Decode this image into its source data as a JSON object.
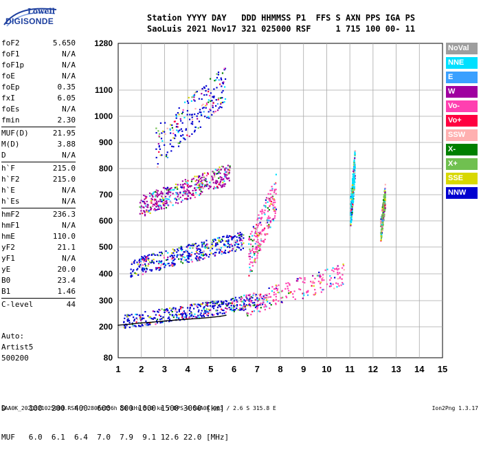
{
  "logo": {
    "line1": "Lowell",
    "line2": "DIGISONDE"
  },
  "header": {
    "line1": "Station YYYY DAY   DDD HHMMSS P1  FFS S AXN PPS IGA PS",
    "line2": "SaoLuis 2021 Nov17 321 025000 RSF     1 715 100 00- 11"
  },
  "params": [
    {
      "name": "foF2",
      "value": "5.650"
    },
    {
      "name": "foF1",
      "value": "N/A"
    },
    {
      "name": "foF1p",
      "value": "N/A"
    },
    {
      "name": "foE",
      "value": "N/A"
    },
    {
      "name": "foEp",
      "value": "0.35"
    },
    {
      "name": "fxI",
      "value": "6.05"
    },
    {
      "name": "foEs",
      "value": "N/A"
    },
    {
      "name": "fmin",
      "value": "2.30"
    },
    {
      "name": "MUF(D)",
      "value": "21.95",
      "sep": true
    },
    {
      "name": "M(D)",
      "value": "3.88"
    },
    {
      "name": "D",
      "value": "N/A"
    },
    {
      "name": "h`F",
      "value": "215.0",
      "sep": true
    },
    {
      "name": "h`F2",
      "value": "215.0"
    },
    {
      "name": "h`E",
      "value": "N/A"
    },
    {
      "name": "h`Es",
      "value": "N/A"
    },
    {
      "name": "hmF2",
      "value": "236.3",
      "sep": true
    },
    {
      "name": "hmF1",
      "value": "N/A"
    },
    {
      "name": "hmE",
      "value": "110.0"
    },
    {
      "name": "yF2",
      "value": "21.1"
    },
    {
      "name": "yF1",
      "value": "N/A"
    },
    {
      "name": "yE",
      "value": "20.0"
    },
    {
      "name": "B0",
      "value": "23.4"
    },
    {
      "name": "B1",
      "value": "1.46"
    },
    {
      "name": "C-level",
      "value": "44",
      "sep": true
    }
  ],
  "auto": {
    "line1": "Auto:",
    "line2": "Artist5",
    "line3": "500200"
  },
  "footer": {
    "d_line": "D     100  200  400  600  800 1000 1500 3000 [km]",
    "muf_line": "MUF   6.0  6.1  6.4  7.0  7.9  9.1 12.6 22.0 [MHz]"
  },
  "bottom_line": "SAA0K_2021321025000.RSF / 280fx256h 50 kHs 5.0 km / DPS-4 SAA0K 903 / 2.6 S 315.8 E",
  "version": "Ion2Png 1.3.17",
  "legend": [
    {
      "label": "NoVal",
      "color": "#9e9e9e"
    },
    {
      "label": "NNE",
      "color": "#00e0ff"
    },
    {
      "label": "E",
      "color": "#3aa0ff"
    },
    {
      "label": "W",
      "color": "#a000a0"
    },
    {
      "label": "Vo-",
      "color": "#ff40b0"
    },
    {
      "label": "Vo+",
      "color": "#ff0040"
    },
    {
      "label": "SSW",
      "color": "#ffb0b0"
    },
    {
      "label": "X-",
      "color": "#008000"
    },
    {
      "label": "X+",
      "color": "#70c050"
    },
    {
      "label": "SSE",
      "color": "#d8d800"
    },
    {
      "label": "NNW",
      "color": "#0000d0"
    }
  ],
  "chart_data": {
    "type": "scatter",
    "xlabel": "",
    "ylabel": "",
    "xlim": [
      1,
      15
    ],
    "ylim": [
      80,
      1280
    ],
    "x_ticks": [
      "1",
      "2",
      "3",
      "4",
      "5",
      "6",
      "7",
      "8",
      "9",
      "10",
      "11",
      "12",
      "13",
      "14",
      "15"
    ],
    "y_ticks": [
      "80",
      "200",
      "300",
      "400",
      "500",
      "600",
      "700",
      "800",
      "900",
      "1000",
      "1100",
      "1280"
    ],
    "grid": true,
    "trace": {
      "name": "F2 virtual height trace",
      "x": [
        1.0,
        1.5,
        2.0,
        2.5,
        3.0,
        3.5,
        4.0,
        4.5,
        5.0,
        5.4,
        5.65
      ],
      "y": [
        206,
        210,
        215,
        218,
        222,
        226,
        229,
        232,
        236,
        240,
        244
      ]
    },
    "echo_clusters": [
      {
        "label": "F2 O-mode 1st hop",
        "x": [
          1.2,
          7.3
        ],
        "y": [
          210,
          330
        ],
        "color": "#0000d0"
      },
      {
        "label": "F2 2nd hop",
        "x": [
          1.5,
          6.4
        ],
        "y": [
          410,
          560
        ],
        "color": "#0000d0"
      },
      {
        "label": "F2 3rd hop",
        "x": [
          1.9,
          5.8
        ],
        "y": [
          640,
          820
        ],
        "color": "#a000a0"
      },
      {
        "label": "upper multi-hop",
        "x": [
          2.6,
          5.6
        ],
        "y": [
          850,
          1200
        ],
        "color": "#0000d0"
      },
      {
        "label": "spread F",
        "x": [
          6.2,
          10.8
        ],
        "y": [
          260,
          440
        ],
        "color": "#ff40b0"
      },
      {
        "label": "spread F high",
        "x": [
          6.6,
          7.8
        ],
        "y": [
          430,
          780
        ],
        "color": "#ff40b0"
      },
      {
        "label": "interference 11.1 MHz",
        "x": [
          11.0,
          11.2
        ],
        "y": [
          600,
          880
        ],
        "color": "#00e0ff"
      },
      {
        "label": "interference 12.4 MHz",
        "x": [
          12.3,
          12.5
        ],
        "y": [
          540,
          740
        ],
        "color": "#70c050"
      }
    ]
  }
}
